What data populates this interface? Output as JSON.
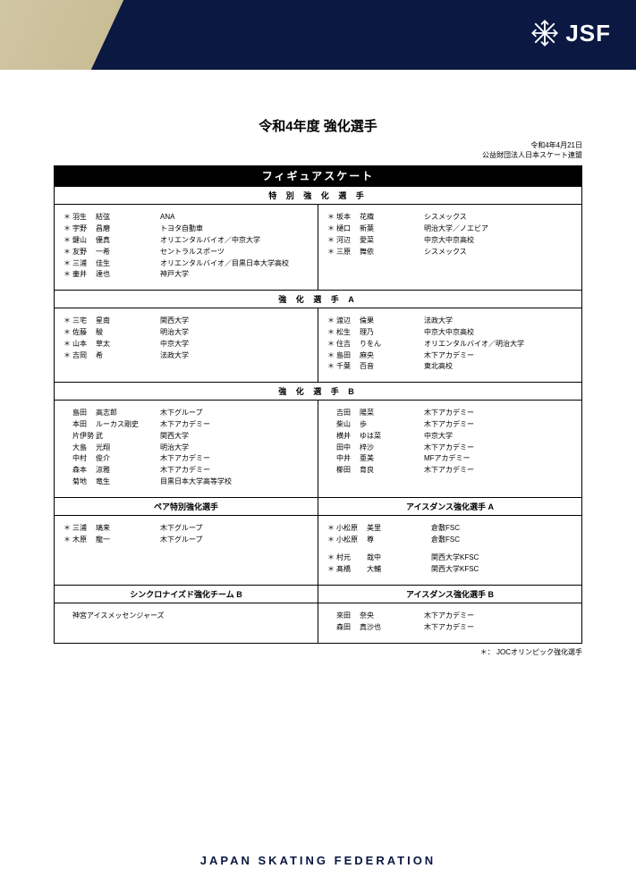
{
  "colors": {
    "header_bg": "#0a1842",
    "header_accent": "#d4c9a8",
    "page_bg": "#ffffff",
    "text": "#000000",
    "inverse_text": "#ffffff"
  },
  "logo_text": "JSF",
  "doc_title": "令和4年度 強化選手",
  "date_line": "令和4年4月21日",
  "org_line": "公益財団法人日本スケート連盟",
  "sport_title": "フィギュアスケート",
  "footnote": "＊： JOCオリンピック強化選手",
  "footer": "JAPAN SKATING FEDERATION",
  "sections": {
    "tokubetsu": {
      "title": "特 別 強 化 選 手",
      "left": [
        {
          "s": "＊",
          "sn": "羽生",
          "gn": "結弦",
          "af": "ANA"
        },
        {
          "s": "＊",
          "sn": "宇野",
          "gn": "昌磨",
          "af": "トヨタ自動車"
        },
        {
          "s": "＊",
          "sn": "鍵山",
          "gn": "優真",
          "af": "オリエンタルバイオ／中京大学"
        },
        {
          "s": "＊",
          "sn": "友野",
          "gn": "一希",
          "af": "セントラルスポーツ"
        },
        {
          "s": "＊",
          "sn": "三浦",
          "gn": "佳生",
          "af": "オリエンタルバイオ／目黒日本大学高校"
        },
        {
          "s": "＊",
          "sn": "壷井",
          "gn": "達也",
          "af": "神戸大学"
        }
      ],
      "right": [
        {
          "s": "＊",
          "sn": "坂本",
          "gn": "花織",
          "af": "シスメックス"
        },
        {
          "s": "＊",
          "sn": "樋口",
          "gn": "新葉",
          "af": "明治大学／ノエビア"
        },
        {
          "s": "＊",
          "sn": "河辺",
          "gn": "愛菜",
          "af": "中京大中京高校"
        },
        {
          "s": "＊",
          "sn": "三原",
          "gn": "舞依",
          "af": "シスメックス"
        }
      ]
    },
    "kyoka_a": {
      "title": "強 化 選 手 A",
      "left": [
        {
          "s": "＊",
          "sn": "三宅",
          "gn": "星南",
          "af": "関西大学"
        },
        {
          "s": "＊",
          "sn": "佐藤",
          "gn": "駿",
          "af": "明治大学"
        },
        {
          "s": "＊",
          "sn": "山本",
          "gn": "草太",
          "af": "中京大学"
        },
        {
          "s": "＊",
          "sn": "吉岡",
          "gn": "希",
          "af": "法政大学"
        }
      ],
      "right": [
        {
          "s": "＊",
          "sn": "渡辺",
          "gn": "倫果",
          "af": "法政大学"
        },
        {
          "s": "＊",
          "sn": "松生",
          "gn": "理乃",
          "af": "中京大中京高校"
        },
        {
          "s": "＊",
          "sn": "住吉",
          "gn": "りをん",
          "af": "オリエンタルバイオ／明治大学"
        },
        {
          "s": "＊",
          "sn": "島田",
          "gn": "麻央",
          "af": "木下アカデミー"
        },
        {
          "s": "＊",
          "sn": "千葉",
          "gn": "百音",
          "af": "東北高校"
        }
      ]
    },
    "kyoka_b": {
      "title": "強 化 選 手 B",
      "left": [
        {
          "s": "",
          "sn": "島田",
          "gn": "高志郎",
          "af": "木下グループ"
        },
        {
          "s": "",
          "sn": "本田",
          "gn": "ルーカス剛史",
          "af": "木下アカデミー"
        },
        {
          "s": "",
          "sn": "片伊勢",
          "gn": "武",
          "af": "関西大学"
        },
        {
          "s": "",
          "sn": "大島",
          "gn": "光翔",
          "af": "明治大学"
        },
        {
          "s": "",
          "sn": "中村",
          "gn": "俊介",
          "af": "木下アカデミー"
        },
        {
          "s": "",
          "sn": "森本",
          "gn": "涼雅",
          "af": "木下アカデミー"
        },
        {
          "s": "",
          "sn": "菊地",
          "gn": "竜生",
          "af": "目黒日本大学高等学校"
        }
      ],
      "right": [
        {
          "s": "",
          "sn": "吉田",
          "gn": "陽菜",
          "af": "木下アカデミー"
        },
        {
          "s": "",
          "sn": "柴山",
          "gn": "歩",
          "af": "木下アカデミー"
        },
        {
          "s": "",
          "sn": "横井",
          "gn": "ゆは菜",
          "af": "中京大学"
        },
        {
          "s": "",
          "sn": "田中",
          "gn": "梓沙",
          "af": "木下アカデミー"
        },
        {
          "s": "",
          "sn": "中井",
          "gn": "亜美",
          "af": "MFアカデミー"
        },
        {
          "s": "",
          "sn": "櫛田",
          "gn": "育良",
          "af": "木下アカデミー"
        }
      ]
    },
    "pair": {
      "title": "ペア特別強化選手",
      "rows": [
        {
          "s": "＊",
          "sn": "三浦",
          "gn": "璃来",
          "af": "木下グループ"
        },
        {
          "s": "＊",
          "sn": "木原",
          "gn": "龍一",
          "af": "木下グループ"
        }
      ]
    },
    "ice_a": {
      "title": "アイスダンス強化選手 A",
      "g1": [
        {
          "s": "＊",
          "sn": "小松原",
          "gn": "美里",
          "af": "倉敷FSC"
        },
        {
          "s": "＊",
          "sn": "小松原",
          "gn": "尊",
          "af": "倉敷FSC"
        }
      ],
      "g2": [
        {
          "s": "＊",
          "sn": "村元",
          "gn": "哉中",
          "af": "関西大学KFSC"
        },
        {
          "s": "＊",
          "sn": "髙橋",
          "gn": "大輔",
          "af": "関西大学KFSC"
        }
      ]
    },
    "synchro": {
      "title": "シンクロナイズド強化チーム B",
      "team": "神宮アイスメッセンジャーズ"
    },
    "ice_b": {
      "title": "アイスダンス強化選手 B",
      "rows": [
        {
          "s": "",
          "sn": "來田",
          "gn": "奈央",
          "af": "木下アカデミー"
        },
        {
          "s": "",
          "sn": "森田",
          "gn": "真沙也",
          "af": "木下アカデミー"
        }
      ]
    }
  }
}
